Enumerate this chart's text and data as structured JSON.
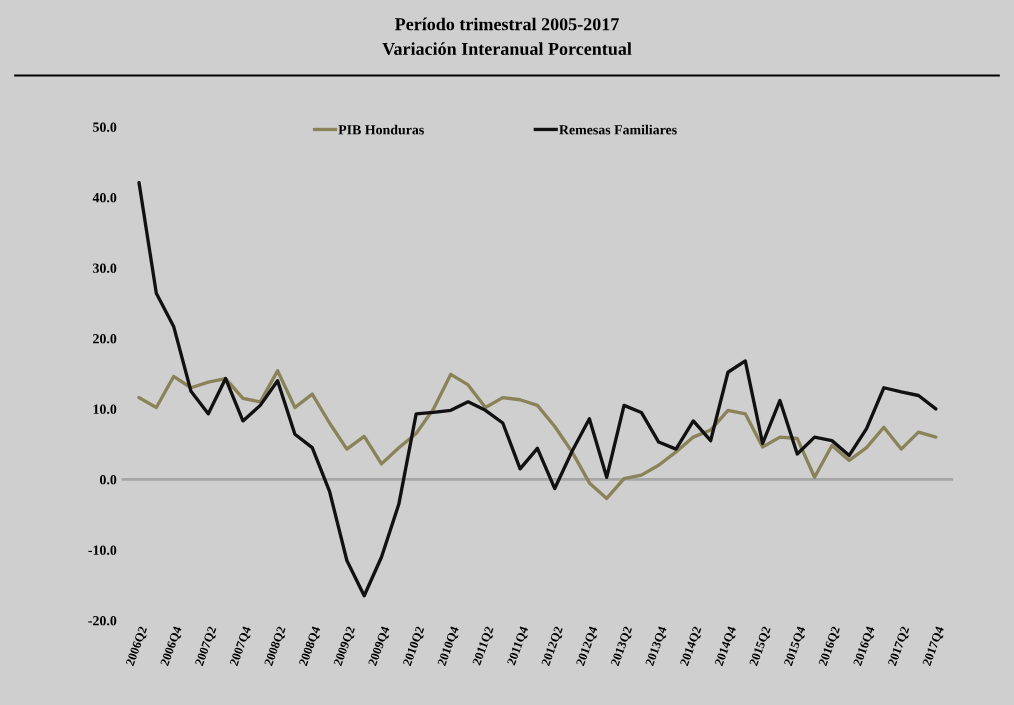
{
  "chart_data": {
    "type": "line",
    "title": "Período trimestral 2005-2017",
    "subtitle": "Variación Interanual Porcentual",
    "categories": [
      "2006Q2",
      null,
      "2006Q4",
      null,
      "2007Q2",
      null,
      "2007Q4",
      null,
      "2008Q2",
      null,
      "2008Q4",
      null,
      "2009Q2",
      null,
      "2009Q4",
      null,
      "2010Q2",
      null,
      "2010Q4",
      null,
      "2011Q2",
      null,
      "2011Q4",
      null,
      "2012Q2",
      null,
      "2012Q4",
      null,
      "2013Q2",
      null,
      "2013Q4",
      null,
      "2014Q2",
      null,
      "2014Q4",
      null,
      "2015Q2",
      null,
      "2015Q4",
      null,
      "2016Q2",
      null,
      "2016Q4",
      null,
      "2017Q2",
      null,
      "2017Q4"
    ],
    "series": [
      {
        "name": "PIB Honduras",
        "color": "#8a835a",
        "values": [
          11.6,
          10.2,
          14.6,
          13,
          13.8,
          14.3,
          11.5,
          11,
          15.4,
          10.2,
          12.1,
          8,
          4.3,
          6.1,
          2.2,
          4.5,
          6.5,
          10,
          14.9,
          13.4,
          10.2,
          11.6,
          11.3,
          10.5,
          7.5,
          3.9,
          -0.5,
          -2.7,
          0.1,
          0.6,
          2,
          3.9,
          6,
          7,
          9.8,
          9.3,
          4.6,
          6,
          5.8,
          0.3,
          4.8,
          2.7,
          4.5,
          7.4,
          4.3,
          6.7,
          6
        ]
      },
      {
        "name": "Remesas Familiares",
        "color": "#111111",
        "values": [
          42.1,
          26.4,
          21.7,
          12.5,
          9.3,
          14.3,
          8.3,
          10.5,
          14,
          6.4,
          4.5,
          -1.7,
          -11.5,
          -16.5,
          -11,
          -3.5,
          9.3,
          9.5,
          9.8,
          11,
          9.8,
          8,
          1.5,
          4.4,
          -1.3,
          4,
          8.6,
          0.3,
          10.5,
          9.5,
          5.3,
          4.3,
          8.3,
          5.5,
          15.2,
          16.8,
          5.1,
          11.2,
          3.6,
          6,
          5.5,
          3.4,
          7.2,
          13,
          12.4,
          11.9,
          10
        ]
      }
    ],
    "ylim": [
      -20,
      50
    ],
    "yticks": [
      {
        "value": -20,
        "label": "-20.0"
      },
      {
        "value": -10,
        "label": "-10.0"
      },
      {
        "value": 0,
        "label": "0.0"
      },
      {
        "value": 10,
        "label": "10.0"
      },
      {
        "value": 20,
        "label": "20.0"
      },
      {
        "value": 30,
        "label": "30.0"
      },
      {
        "value": 40,
        "label": "40.0"
      },
      {
        "value": 50,
        "label": "50.0"
      }
    ],
    "ref_lines": [
      {
        "axis": "y",
        "value": 0,
        "color": "#a6a6a6"
      }
    ],
    "legend": "top",
    "grid": false
  }
}
